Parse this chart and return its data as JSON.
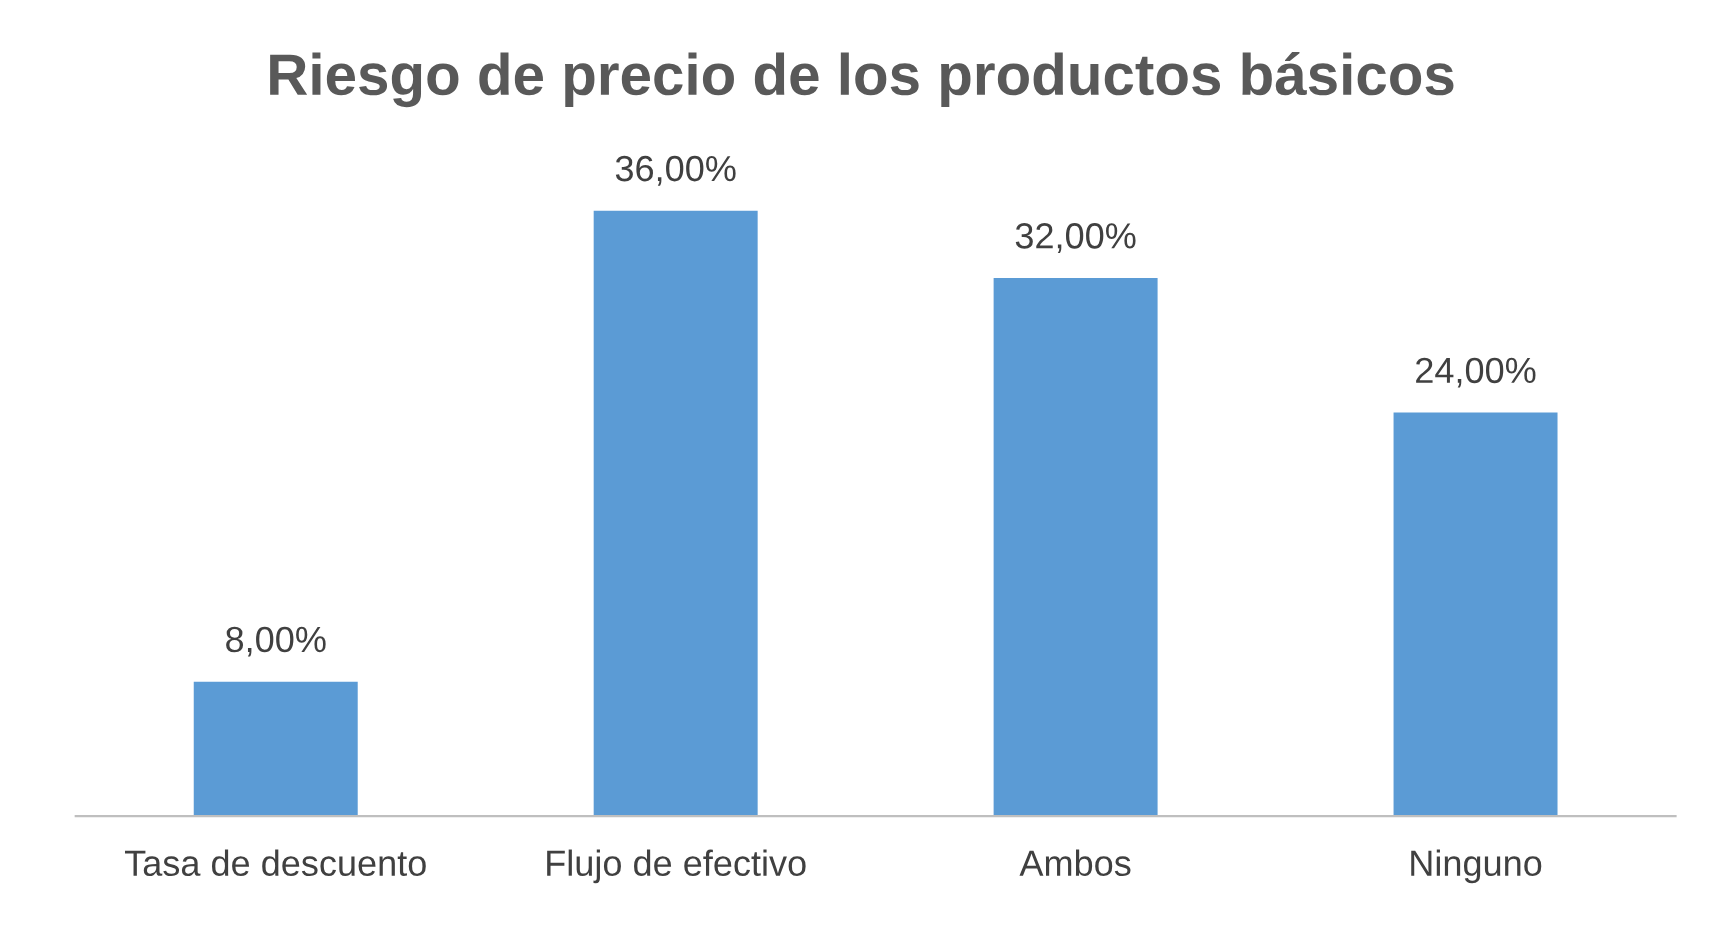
{
  "chart_data": {
    "type": "bar",
    "title": "Riesgo de precio de los productos básicos",
    "categories": [
      "Tasa de descuento",
      "Flujo de efectivo",
      "Ambos",
      "Ninguno"
    ],
    "values": [
      8,
      36,
      32,
      24
    ],
    "value_labels": [
      "8,00%",
      "36,00%",
      "32,00%",
      "24,00%"
    ],
    "color": "#5b9bd5",
    "tick_labels": "x",
    "grid": false,
    "legend": false
  }
}
